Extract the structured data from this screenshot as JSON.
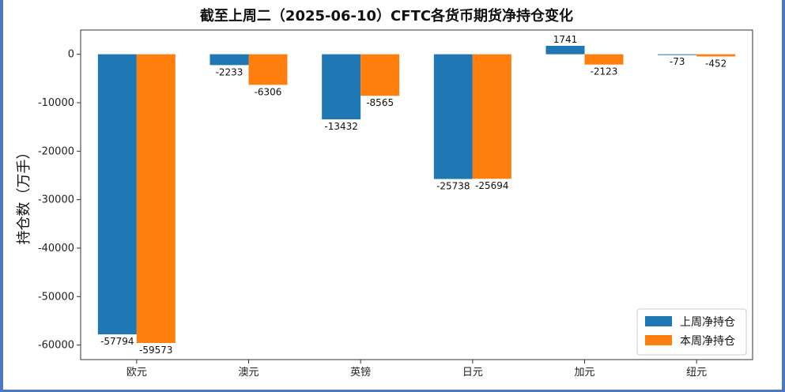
{
  "chart_data": {
    "type": "bar",
    "title": "截至上周二（2025-06-10）CFTC各货币期货净持仓变化",
    "xlabel": "",
    "ylabel": "持仓数（万手）",
    "ylim": [
      -63000,
      5000
    ],
    "yticks": [
      0,
      -10000,
      -20000,
      -30000,
      -40000,
      -50000,
      -60000
    ],
    "categories": [
      "欧元",
      "澳元",
      "英镑",
      "日元",
      "加元",
      "纽元"
    ],
    "series": [
      {
        "name": "上周净持仓",
        "color": "#1f77b4",
        "values": [
          -57794,
          -2233,
          -13432,
          -25738,
          1741,
          -73
        ]
      },
      {
        "name": "本周净持仓",
        "color": "#ff7f0e",
        "values": [
          -59573,
          -6306,
          -8565,
          -25694,
          -2123,
          -452
        ]
      }
    ],
    "legend_position": "lower-right",
    "grid": false
  }
}
